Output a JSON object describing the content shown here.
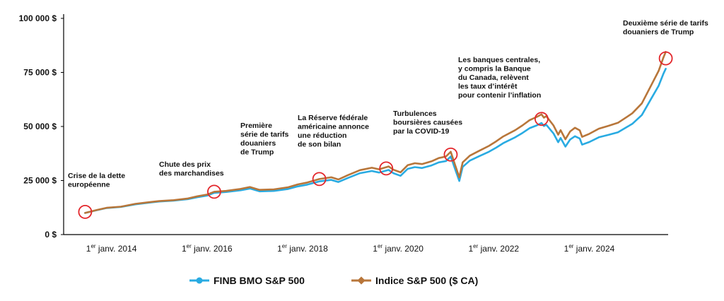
{
  "chart_data": {
    "type": "line",
    "x_unit": "year",
    "xlim": [
      2013.0,
      2025.65
    ],
    "ylim": [
      0,
      100000
    ],
    "y_ticks": [
      {
        "value": 0,
        "label": "0 $"
      },
      {
        "value": 25000,
        "label": "25 000 $"
      },
      {
        "value": 50000,
        "label": "50 000 $"
      },
      {
        "value": 75000,
        "label": "75 000 $"
      },
      {
        "value": 100000,
        "label": "100 000 $"
      }
    ],
    "x_ticks": [
      {
        "value": 2014,
        "pre": "1",
        "sup": "er",
        "post": " janv. 2014"
      },
      {
        "value": 2016,
        "pre": "1",
        "sup": "er",
        "post": " janv. 2016"
      },
      {
        "value": 2018,
        "pre": "1",
        "sup": "er",
        "post": " janv. 2018"
      },
      {
        "value": 2020,
        "pre": "1",
        "sup": "er",
        "post": " janv. 2020"
      },
      {
        "value": 2022,
        "pre": "1",
        "sup": "er",
        "post": " janv. 2022"
      },
      {
        "value": 2024,
        "pre": "1",
        "sup": "er",
        "post": " janv. 2024"
      }
    ],
    "grid": false,
    "legend_position": "bottom",
    "series": [
      {
        "name": "FINB BMO S&P 500",
        "color": "#29abe2",
        "points": [
          [
            2013.45,
            10000
          ],
          [
            2013.7,
            11300
          ],
          [
            2013.9,
            12300
          ],
          [
            2014.2,
            12800
          ],
          [
            2014.5,
            14000
          ],
          [
            2014.8,
            14800
          ],
          [
            2015.0,
            15300
          ],
          [
            2015.3,
            15700
          ],
          [
            2015.6,
            16400
          ],
          [
            2015.8,
            17300
          ],
          [
            2016.0,
            18000
          ],
          [
            2016.15,
            19300
          ],
          [
            2016.4,
            19700
          ],
          [
            2016.7,
            20500
          ],
          [
            2016.9,
            21300
          ],
          [
            2017.1,
            20000
          ],
          [
            2017.4,
            20200
          ],
          [
            2017.7,
            21100
          ],
          [
            2017.9,
            22300
          ],
          [
            2018.1,
            23100
          ],
          [
            2018.35,
            24600
          ],
          [
            2018.6,
            25300
          ],
          [
            2018.75,
            24300
          ],
          [
            2018.95,
            26200
          ],
          [
            2019.2,
            28400
          ],
          [
            2019.45,
            29400
          ],
          [
            2019.6,
            28700
          ],
          [
            2019.8,
            29900
          ],
          [
            2019.9,
            28400
          ],
          [
            2020.05,
            27200
          ],
          [
            2020.2,
            30400
          ],
          [
            2020.35,
            31200
          ],
          [
            2020.5,
            30800
          ],
          [
            2020.7,
            32000
          ],
          [
            2020.85,
            33400
          ],
          [
            2021.0,
            34000
          ],
          [
            2021.1,
            36100
          ],
          [
            2021.2,
            29800
          ],
          [
            2021.28,
            24800
          ],
          [
            2021.35,
            31300
          ],
          [
            2021.5,
            34200
          ],
          [
            2021.7,
            36300
          ],
          [
            2021.9,
            38300
          ],
          [
            2022.05,
            40200
          ],
          [
            2022.2,
            42300
          ],
          [
            2022.45,
            45000
          ],
          [
            2022.6,
            47000
          ],
          [
            2022.75,
            49200
          ],
          [
            2022.9,
            50500
          ],
          [
            2023.0,
            51600
          ],
          [
            2023.05,
            50200
          ],
          [
            2023.1,
            50800
          ],
          [
            2023.25,
            46800
          ],
          [
            2023.35,
            42700
          ],
          [
            2023.4,
            44700
          ],
          [
            2023.5,
            40700
          ],
          [
            2023.6,
            44000
          ],
          [
            2023.7,
            45500
          ],
          [
            2023.8,
            44400
          ],
          [
            2023.85,
            41600
          ],
          [
            2024.0,
            42800
          ],
          [
            2024.2,
            45000
          ],
          [
            2024.4,
            46100
          ],
          [
            2024.6,
            47300
          ],
          [
            2024.8,
            49900
          ],
          [
            2024.9,
            51200
          ],
          [
            2025.1,
            55300
          ],
          [
            2025.3,
            63000
          ],
          [
            2025.45,
            68800
          ],
          [
            2025.55,
            74300
          ],
          [
            2025.6,
            76700
          ]
        ]
      },
      {
        "name": "Indice S&P 500 ($ CA)",
        "color": "#b8763a",
        "points": [
          [
            2013.45,
            10000
          ],
          [
            2013.7,
            11400
          ],
          [
            2013.9,
            12400
          ],
          [
            2014.2,
            12900
          ],
          [
            2014.5,
            14200
          ],
          [
            2014.8,
            15000
          ],
          [
            2015.0,
            15500
          ],
          [
            2015.3,
            15900
          ],
          [
            2015.6,
            16700
          ],
          [
            2015.8,
            17700
          ],
          [
            2016.0,
            18500
          ],
          [
            2016.15,
            19800
          ],
          [
            2016.4,
            20200
          ],
          [
            2016.7,
            21100
          ],
          [
            2016.9,
            22000
          ],
          [
            2017.1,
            20700
          ],
          [
            2017.4,
            20900
          ],
          [
            2017.7,
            21900
          ],
          [
            2017.9,
            23200
          ],
          [
            2018.1,
            24100
          ],
          [
            2018.35,
            25700
          ],
          [
            2018.6,
            26500
          ],
          [
            2018.75,
            25500
          ],
          [
            2018.95,
            27500
          ],
          [
            2019.2,
            29800
          ],
          [
            2019.45,
            30900
          ],
          [
            2019.6,
            30200
          ],
          [
            2019.8,
            31500
          ],
          [
            2019.9,
            30000
          ],
          [
            2020.05,
            28800
          ],
          [
            2020.2,
            32100
          ],
          [
            2020.35,
            33000
          ],
          [
            2020.5,
            32600
          ],
          [
            2020.7,
            33900
          ],
          [
            2020.85,
            35400
          ],
          [
            2021.0,
            36100
          ],
          [
            2021.1,
            38300
          ],
          [
            2021.2,
            31700
          ],
          [
            2021.28,
            26500
          ],
          [
            2021.35,
            33400
          ],
          [
            2021.5,
            36500
          ],
          [
            2021.7,
            38800
          ],
          [
            2021.9,
            41000
          ],
          [
            2022.05,
            43100
          ],
          [
            2022.2,
            45400
          ],
          [
            2022.45,
            48300
          ],
          [
            2022.6,
            50500
          ],
          [
            2022.75,
            52900
          ],
          [
            2022.9,
            54400
          ],
          [
            2023.0,
            55600
          ],
          [
            2023.05,
            54100
          ],
          [
            2023.1,
            54800
          ],
          [
            2023.25,
            50500
          ],
          [
            2023.35,
            46200
          ],
          [
            2023.4,
            48300
          ],
          [
            2023.5,
            44100
          ],
          [
            2023.6,
            47700
          ],
          [
            2023.7,
            49400
          ],
          [
            2023.8,
            48200
          ],
          [
            2023.85,
            45200
          ],
          [
            2024.0,
            46600
          ],
          [
            2024.2,
            49000
          ],
          [
            2024.4,
            50300
          ],
          [
            2024.6,
            51700
          ],
          [
            2024.8,
            54600
          ],
          [
            2024.9,
            56100
          ],
          [
            2025.1,
            60700
          ],
          [
            2025.3,
            69200
          ],
          [
            2025.45,
            75700
          ],
          [
            2025.55,
            81800
          ],
          [
            2025.6,
            84500
          ]
        ]
      }
    ],
    "annotations": [
      {
        "x": 2013.45,
        "y": 10500,
        "lines": [
          "Crise de la dette",
          "européenne"
        ]
      },
      {
        "x": 2016.15,
        "y": 19800,
        "lines": [
          "Chute des prix",
          "des marchandises"
        ]
      },
      {
        "x": 2018.35,
        "y": 25700,
        "lines": [
          "Première",
          "série de tarifs",
          "douaniers",
          "de Trump"
        ]
      },
      {
        "x": 2019.75,
        "y": 30600,
        "lines": [
          "La Réserve fédérale",
          "américaine annonce",
          "une réduction",
          "de son bilan"
        ]
      },
      {
        "x": 2021.1,
        "y": 37000,
        "lines": [
          "Turbulences",
          "boursières causées",
          "par la COVID-19"
        ]
      },
      {
        "x": 2023.0,
        "y": 53500,
        "lines": [
          "Les banques centrales,",
          "y compris la Banque",
          "du Canada, relèvent",
          "les taux d’intérêt",
          "pour contenir l’inflation"
        ]
      },
      {
        "x": 2025.6,
        "y": 81500,
        "lines": [
          "Deuxième série de tarifs",
          "douaniers de Trump"
        ]
      }
    ]
  }
}
